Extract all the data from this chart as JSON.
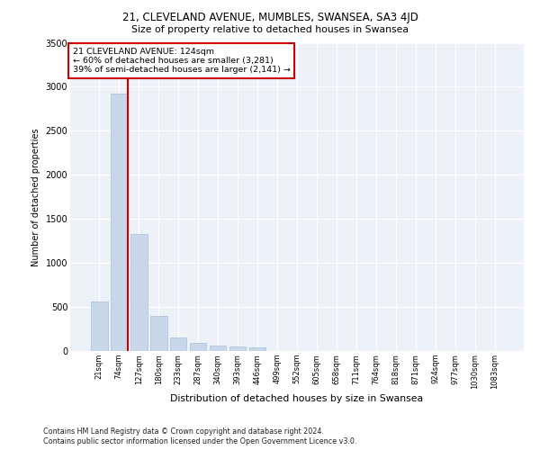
{
  "title1": "21, CLEVELAND AVENUE, MUMBLES, SWANSEA, SA3 4JD",
  "title2": "Size of property relative to detached houses in Swansea",
  "xlabel": "Distribution of detached houses by size in Swansea",
  "ylabel": "Number of detached properties",
  "footnote1": "Contains HM Land Registry data © Crown copyright and database right 2024.",
  "footnote2": "Contains public sector information licensed under the Open Government Licence v3.0.",
  "annotation_line1": "21 CLEVELAND AVENUE: 124sqm",
  "annotation_line2": "← 60% of detached houses are smaller (3,281)",
  "annotation_line3": "39% of semi-detached houses are larger (2,141) →",
  "bar_color": "#c8d8ea",
  "bar_edge_color": "#a8c0d6",
  "marker_color": "#cc0000",
  "background_color": "#edf2f9",
  "categories": [
    "21sqm",
    "74sqm",
    "127sqm",
    "180sqm",
    "233sqm",
    "287sqm",
    "340sqm",
    "393sqm",
    "446sqm",
    "499sqm",
    "552sqm",
    "605sqm",
    "658sqm",
    "711sqm",
    "764sqm",
    "818sqm",
    "871sqm",
    "924sqm",
    "977sqm",
    "1030sqm",
    "1083sqm"
  ],
  "values": [
    560,
    2920,
    1330,
    400,
    155,
    90,
    65,
    55,
    45,
    0,
    0,
    0,
    0,
    0,
    0,
    0,
    0,
    0,
    0,
    0,
    0
  ],
  "ylim": [
    0,
    3500
  ],
  "yticks": [
    0,
    500,
    1000,
    1500,
    2000,
    2500,
    3000,
    3500
  ],
  "marker_bin_index": 1
}
